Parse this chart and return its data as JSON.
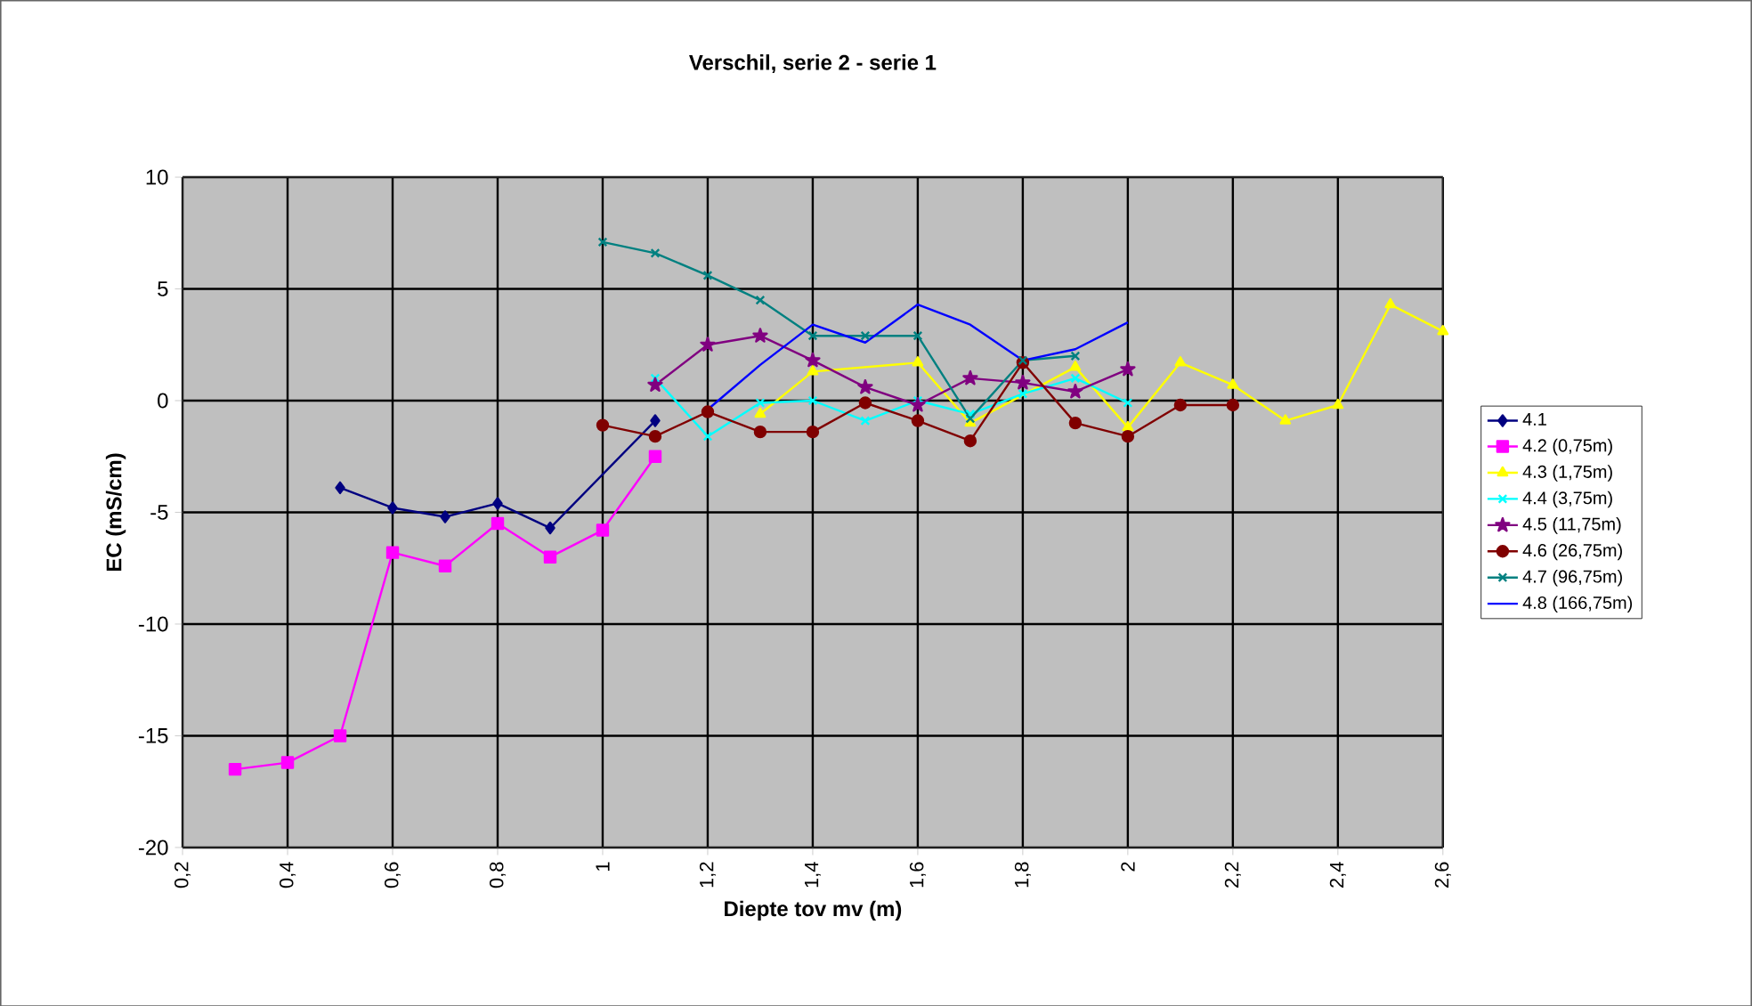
{
  "chart_data": {
    "type": "line",
    "title": "Verschil, serie 2 - serie 1",
    "xlabel": "Diepte tov mv (m)",
    "ylabel": "EC (mS/cm)",
    "xlim": [
      0.2,
      2.6
    ],
    "xticks": [
      {
        "value": 0.2,
        "label": "0,2"
      },
      {
        "value": 0.4,
        "label": "0,4"
      },
      {
        "value": 0.6,
        "label": "0,6"
      },
      {
        "value": 0.8,
        "label": "0,8"
      },
      {
        "value": 1,
        "label": "1"
      },
      {
        "value": 1.2,
        "label": "1,2"
      },
      {
        "value": 1.4,
        "label": "1,4"
      },
      {
        "value": 1.6,
        "label": "1,6"
      },
      {
        "value": 1.8,
        "label": "1,8"
      },
      {
        "value": 2,
        "label": "2"
      },
      {
        "value": 2.2,
        "label": "2,2"
      },
      {
        "value": 2.4,
        "label": "2,4"
      },
      {
        "value": 2.6,
        "label": "2,6"
      }
    ],
    "ylim": [
      -20,
      10
    ],
    "yticks": [
      -20,
      -15,
      -10,
      -5,
      0,
      5,
      10
    ],
    "grid": true,
    "legend": "right",
    "series": [
      {
        "name": "4.1",
        "color": "#000080",
        "marker": "diamond",
        "x": [
          0.5,
          0.6,
          0.7,
          0.8,
          0.9,
          1.0,
          1.1
        ],
        "values": [
          -3.9,
          -4.8,
          -5.2,
          -4.6,
          -5.7,
          null,
          -0.9
        ]
      },
      {
        "name": "4.2 (0,75m)",
        "color": "#ff00ff",
        "marker": "square",
        "x": [
          0.3,
          0.4,
          0.5,
          0.6,
          0.7,
          0.8,
          0.9,
          1.0,
          1.1
        ],
        "values": [
          -16.5,
          -16.2,
          -15.0,
          -6.8,
          -7.4,
          -5.5,
          -7.0,
          -5.8,
          -2.5
        ]
      },
      {
        "name": "4.3 (1,75m)",
        "color": "#ffff00",
        "marker": "triangle",
        "x": [
          1.3,
          1.4,
          1.5,
          1.6,
          1.7,
          1.8,
          1.9,
          2.0,
          2.1,
          2.2,
          2.3,
          2.4,
          2.5,
          2.6
        ],
        "values": [
          -0.6,
          1.3,
          null,
          1.7,
          -1.0,
          null,
          1.5,
          -1.2,
          1.7,
          0.7,
          -0.9,
          -0.2,
          4.3,
          3.1
        ]
      },
      {
        "name": "4.4 (3,75m)",
        "color": "#00ffff",
        "marker": "cross",
        "x": [
          1.1,
          1.2,
          1.3,
          1.4,
          1.5,
          1.6,
          1.7,
          1.8,
          1.9,
          2.0
        ],
        "values": [
          1.0,
          -1.6,
          -0.1,
          0.0,
          -0.9,
          0.0,
          -0.6,
          0.3,
          1.0,
          -0.1
        ]
      },
      {
        "name": "4.5 (11,75m)",
        "color": "#800080",
        "marker": "star",
        "x": [
          1.1,
          1.2,
          1.3,
          1.4,
          1.5,
          1.6,
          1.7,
          1.8,
          1.9,
          2.0
        ],
        "values": [
          0.7,
          2.5,
          2.9,
          1.8,
          0.6,
          -0.2,
          1.0,
          0.8,
          0.4,
          1.4
        ]
      },
      {
        "name": "4.6 (26,75m)",
        "color": "#800000",
        "marker": "circle",
        "x": [
          1.0,
          1.1,
          1.2,
          1.3,
          1.4,
          1.5,
          1.6,
          1.7,
          1.8,
          1.9,
          2.0,
          2.1,
          2.2
        ],
        "values": [
          -1.1,
          -1.6,
          -0.5,
          -1.4,
          -1.4,
          -0.1,
          -0.9,
          -1.8,
          1.7,
          -1.0,
          -1.6,
          -0.2,
          -0.2
        ]
      },
      {
        "name": "4.7 (96,75m)",
        "color": "#008080",
        "marker": "cross",
        "x": [
          1.0,
          1.1,
          1.2,
          1.3,
          1.4,
          1.5,
          1.6,
          1.7,
          1.8,
          1.9
        ],
        "values": [
          7.1,
          6.6,
          5.6,
          4.5,
          2.9,
          2.9,
          2.9,
          -0.8,
          1.8,
          2.0
        ]
      },
      {
        "name": "4.8 (166,75m)",
        "color": "#0000ff",
        "marker": "none",
        "x": [
          1.2,
          1.3,
          1.4,
          1.5,
          1.6,
          1.7,
          1.8,
          1.9,
          2.0
        ],
        "values": [
          -0.4,
          1.6,
          3.4,
          2.6,
          4.3,
          3.4,
          1.8,
          2.3,
          3.5
        ]
      }
    ]
  }
}
